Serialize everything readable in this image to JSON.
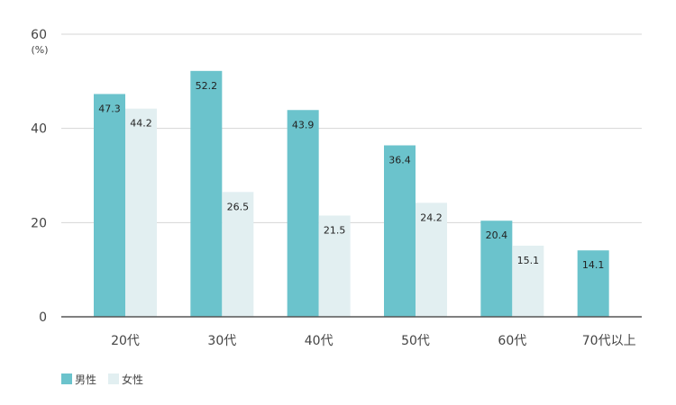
{
  "chart_data": {
    "type": "bar",
    "unit_label": "(%)",
    "categories": [
      "20代",
      "30代",
      "40代",
      "50代",
      "60代",
      "70代以上"
    ],
    "series": [
      {
        "name": "男性",
        "color": "#6bc3cc",
        "values": [
          47.3,
          52.2,
          43.9,
          36.4,
          20.4,
          14.1
        ]
      },
      {
        "name": "女性",
        "color": "#e2eff1",
        "values": [
          44.2,
          26.5,
          21.5,
          24.2,
          15.1,
          null
        ]
      }
    ],
    "ylim": [
      0,
      60
    ],
    "yticks": [
      0,
      20,
      40,
      60
    ],
    "grid": true,
    "legend_position": "bottom-left"
  }
}
